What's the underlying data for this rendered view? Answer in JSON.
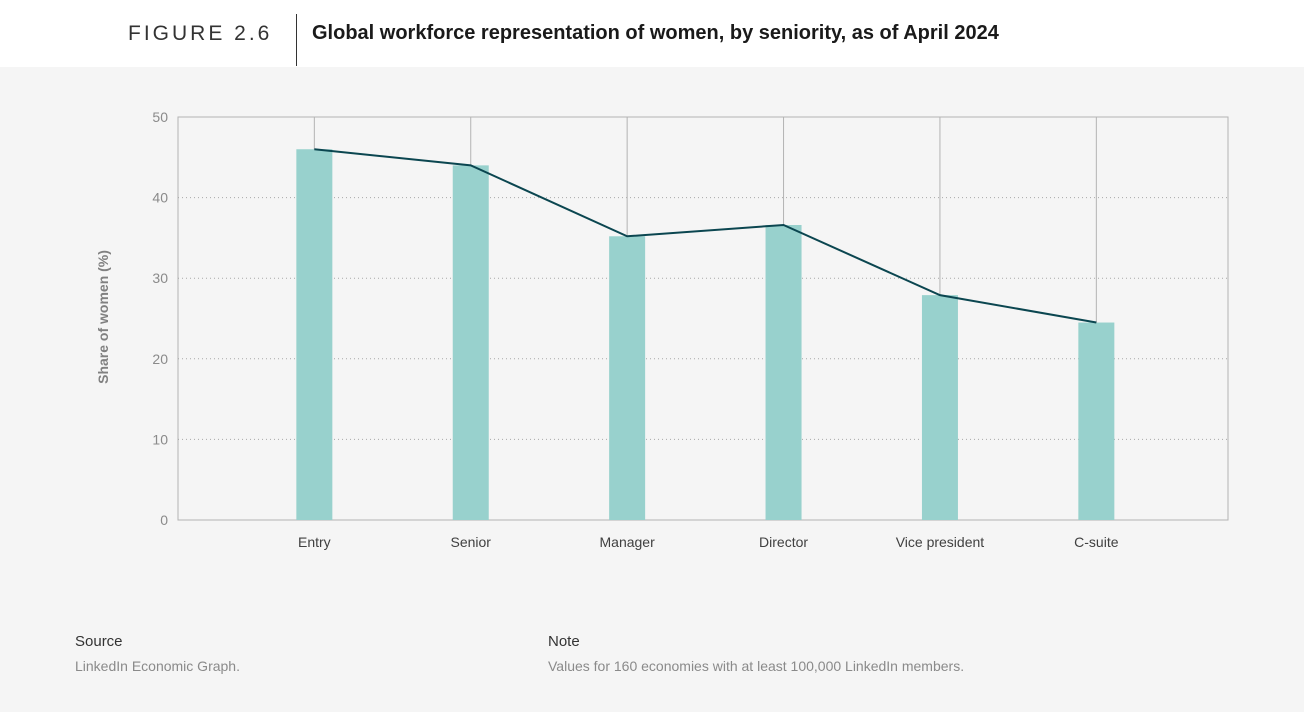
{
  "figure": {
    "label": "FIGURE 2.6",
    "title": "Global workforce representation of women, by seniority, as of April 2024"
  },
  "chart_data": {
    "type": "bar",
    "categories": [
      "Entry",
      "Senior",
      "Manager",
      "Director",
      "Vice president",
      "C-suite"
    ],
    "values": [
      46,
      44,
      35.2,
      36.6,
      27.9,
      24.5
    ],
    "overlay_line": true,
    "ylabel": "Share of women (%)",
    "xlabel": "",
    "ylim": [
      0,
      50
    ],
    "yticks": [
      "0",
      "10",
      "20",
      "30",
      "40",
      "50"
    ],
    "grid": true,
    "bar_color": "#98d1cd",
    "line_color": "#0b4650"
  },
  "footer": {
    "source_heading": "Source",
    "source_text": "LinkedIn Economic Graph.",
    "note_heading": "Note",
    "note_text": "Values for 160 economies with at least 100,000 LinkedIn members."
  }
}
